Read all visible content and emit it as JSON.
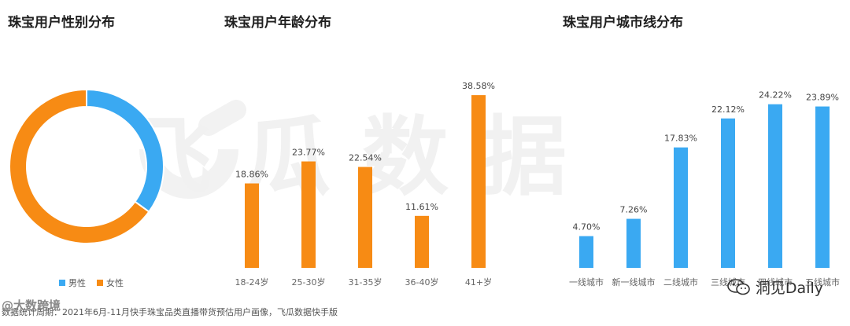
{
  "watermark_text": "飞瓜数据",
  "footer": {
    "source_text": "数据统计周期：2021年6月-11月快手珠宝品类直播带货预估用户画像，飞瓜数据快手版",
    "badge_text": "@大数跨境",
    "wechat_brand": "洞见Daily"
  },
  "colors": {
    "orange": "#F78B14",
    "blue": "#3AA9F2"
  },
  "gender": {
    "title": "珠宝用户性别分布",
    "legend": [
      {
        "label": "男性",
        "color": "#3AA9F2"
      },
      {
        "label": "女性",
        "color": "#F78B14"
      }
    ]
  },
  "age": {
    "title": "珠宝用户年龄分布"
  },
  "city": {
    "title": "珠宝用户城市线分布"
  },
  "chart_data": [
    {
      "type": "pie",
      "title": "珠宝用户性别分布",
      "categories": [
        "男性",
        "女性"
      ],
      "values": [
        35,
        65
      ],
      "legend": "bottom"
    },
    {
      "type": "bar",
      "title": "珠宝用户年龄分布",
      "categories": [
        "18-24岁",
        "25-30岁",
        "31-35岁",
        "36-40岁",
        "41+岁"
      ],
      "values": [
        18.86,
        23.77,
        22.54,
        11.61,
        38.58
      ],
      "labels": [
        "18.86%",
        "23.77%",
        "22.54%",
        "11.61%",
        "38.58%"
      ],
      "ylim": [
        0,
        40
      ],
      "grid": false
    },
    {
      "type": "bar",
      "title": "珠宝用户城市线分布",
      "categories": [
        "一线城市",
        "新一线城市",
        "二线城市",
        "三线城市",
        "四线城市",
        "五线城市"
      ],
      "values": [
        4.7,
        7.26,
        17.83,
        22.12,
        24.22,
        23.89
      ],
      "labels": [
        "4.70%",
        "7.26%",
        "17.83%",
        "22.12%",
        "24.22%",
        "23.89%"
      ],
      "ylim": [
        0,
        25
      ],
      "grid": false
    }
  ]
}
